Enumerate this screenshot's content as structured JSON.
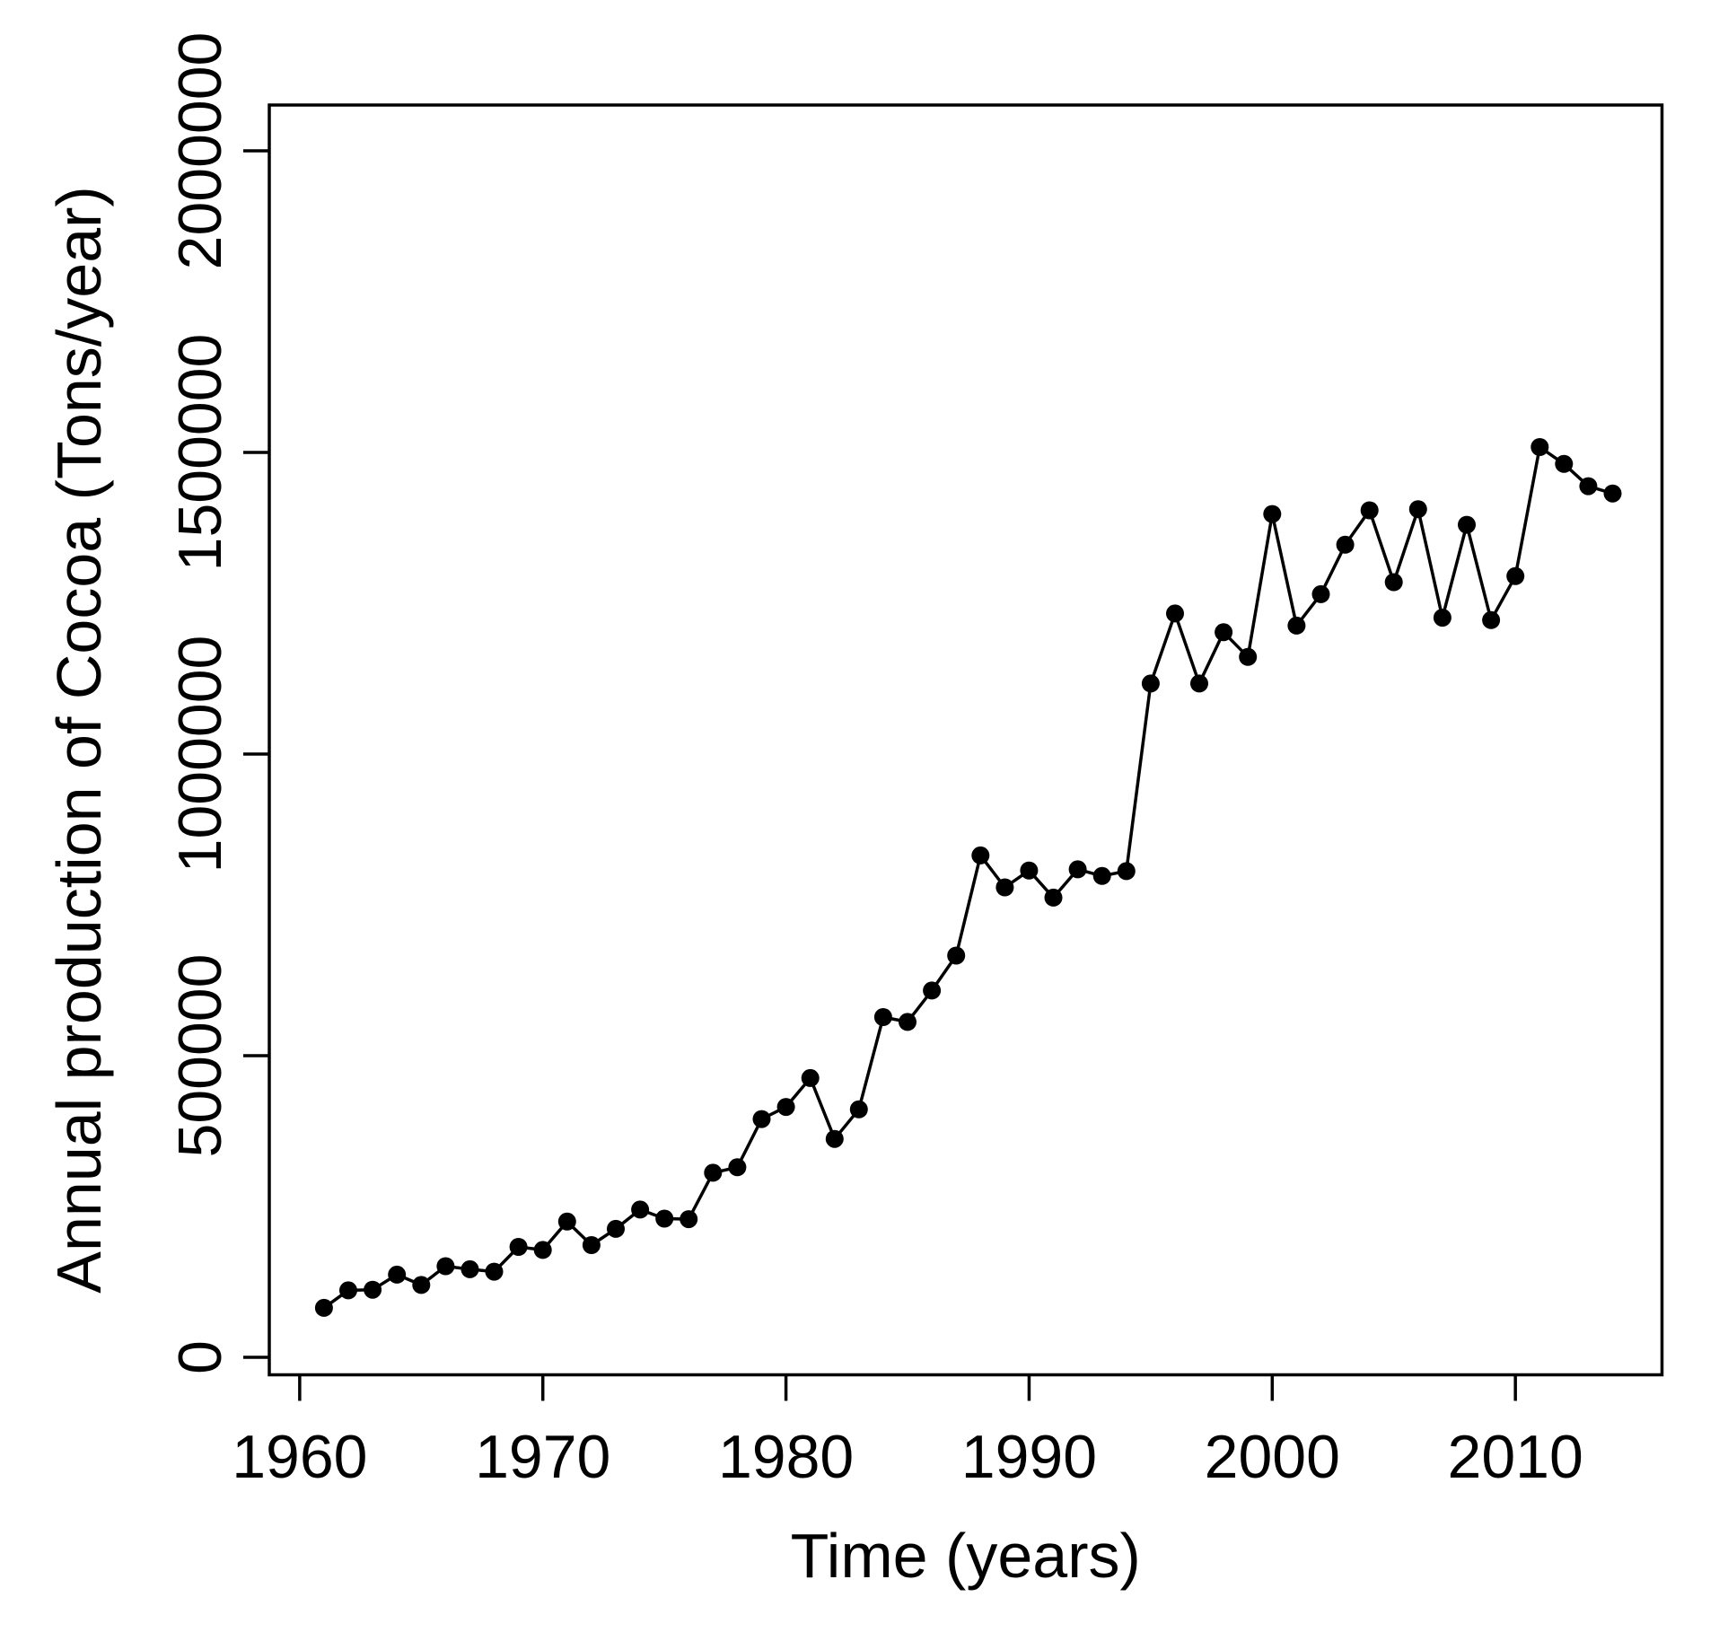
{
  "figure": {
    "background_color": "#ffffff",
    "foreground_color": "#000000"
  },
  "chart_data": {
    "type": "line",
    "title": "",
    "xlabel": "Time (years)",
    "ylabel": "Annual production of Cocoa (Tons/year)",
    "grid": false,
    "legend": null,
    "marker": "filled-circle",
    "line_color": "#000000",
    "point_color": "#000000",
    "xlim": [
      1958.75,
      2016.03
    ],
    "ylim": [
      -29000,
      2075900
    ],
    "x_ticks": {
      "values": [
        1960,
        1970,
        1980,
        1990,
        2000,
        2010
      ],
      "labels": [
        "1960",
        "1970",
        "1980",
        "1990",
        "2000",
        "2010"
      ]
    },
    "y_ticks": {
      "values": [
        0,
        500000,
        1000000,
        1500000,
        2000000
      ],
      "labels": [
        "0",
        "500000",
        "1000000",
        "1500000",
        "2000000"
      ]
    },
    "x": [
      1961,
      1962,
      1963,
      1964,
      1965,
      1966,
      1967,
      1968,
      1969,
      1970,
      1971,
      1972,
      1973,
      1974,
      1975,
      1976,
      1977,
      1978,
      1979,
      1980,
      1981,
      1982,
      1983,
      1984,
      1985,
      1986,
      1987,
      1988,
      1989,
      1990,
      1991,
      1992,
      1993,
      1994,
      1995,
      1996,
      1997,
      1998,
      1999,
      2000,
      2001,
      2002,
      2003,
      2004,
      2005,
      2006,
      2007,
      2008,
      2009,
      2010,
      2011,
      2012,
      2013,
      2014
    ],
    "series": [
      {
        "name": "Annual production of Cocoa",
        "values": [
          82000,
          111000,
          112000,
          137000,
          120000,
          151000,
          146000,
          142000,
          183000,
          178000,
          225000,
          186000,
          213000,
          245000,
          230000,
          229000,
          306000,
          315000,
          395000,
          415000,
          463000,
          362000,
          411000,
          564000,
          556000,
          608000,
          666000,
          832000,
          779000,
          807000,
          762000,
          809000,
          798000,
          806000,
          1117000,
          1233000,
          1117000,
          1202000,
          1161000,
          1398000,
          1213000,
          1265000,
          1347000,
          1404000,
          1285000,
          1406000,
          1226000,
          1380000,
          1222000,
          1295000,
          1509000,
          1481000,
          1444000,
          1432000
        ]
      }
    ]
  }
}
